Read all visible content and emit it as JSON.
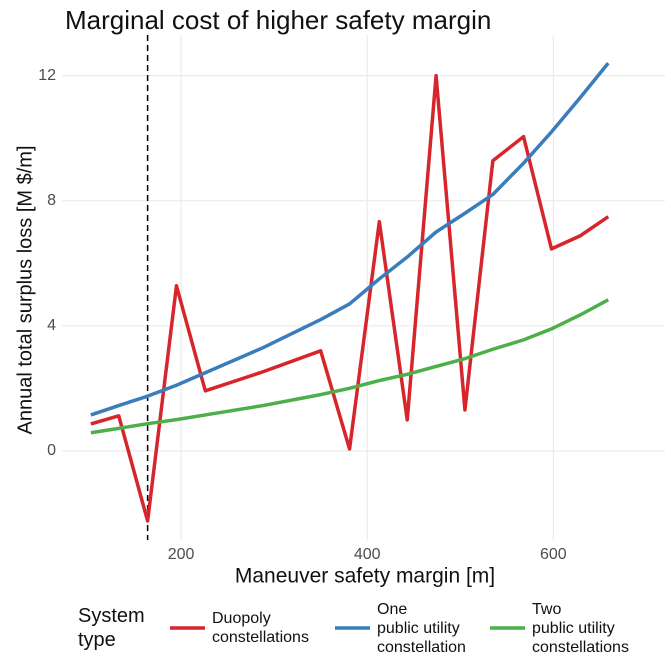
{
  "chart_data": {
    "type": "line",
    "title": "Marginal cost of higher safety margin",
    "x_label": "Maneuver safety margin [m]",
    "y_label": "Annual total surplus loss [M $/m]",
    "x": [
      103,
      133,
      164,
      195,
      226,
      288,
      350,
      381,
      413,
      443,
      474,
      505,
      535,
      568,
      598,
      629,
      659
    ],
    "series": [
      {
        "name": "Duopoly\nconstellations",
        "color": "#d7262b",
        "values": [
          0.86,
          1.12,
          -2.24,
          5.28,
          1.92,
          2.53,
          3.2,
          0.06,
          7.33,
          0.99,
          12.0,
          1.31,
          9.28,
          10.05,
          6.46,
          6.88,
          7.49
        ]
      },
      {
        "name": "One\npublic utility\nconstellation",
        "color": "#3a7dba",
        "values": [
          1.15,
          1.45,
          1.75,
          2.1,
          2.5,
          3.3,
          4.2,
          4.7,
          5.5,
          6.2,
          7.0,
          7.6,
          8.2,
          9.2,
          10.2,
          11.3,
          12.4
        ]
      },
      {
        "name": "Two\npublic utility\nconstellations",
        "color": "#4daf4a",
        "values": [
          0.58,
          0.72,
          0.87,
          1.0,
          1.15,
          1.45,
          1.8,
          2.0,
          2.25,
          2.45,
          2.7,
          2.95,
          3.25,
          3.55,
          3.9,
          4.35,
          4.83
        ]
      }
    ],
    "legend_title": "System\ntype",
    "vline": 164,
    "xlim": [
      72,
      720
    ],
    "xticks": [
      200,
      400,
      600
    ],
    "ylim": [
      -2.85,
      13.3
    ],
    "yticks": [
      0,
      4,
      8,
      12
    ],
    "grid": true
  }
}
